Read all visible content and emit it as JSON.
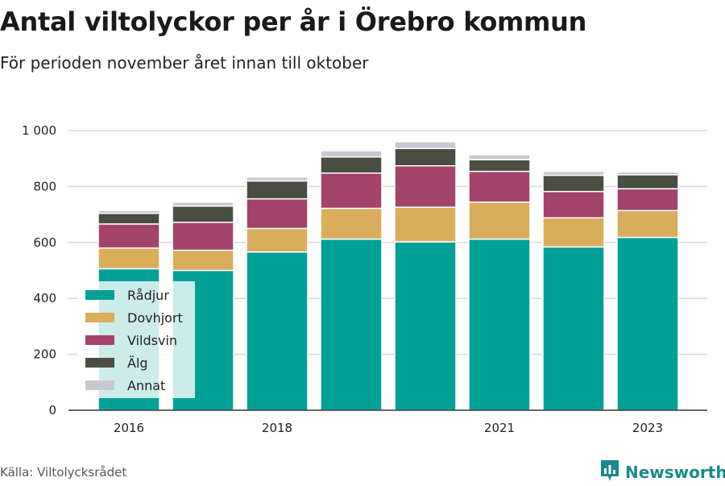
{
  "title": "Antal viltolyckor per år i Örebro kommun",
  "subtitle": "För perioden november året innan till oktober",
  "source": "Källa: Viltolycksrådet",
  "brand": {
    "name": "Newsworthy",
    "icon": "bar-chart-icon",
    "color": "#1a8a8a"
  },
  "chart_data": {
    "type": "bar",
    "stacked": true,
    "categories": [
      "2016",
      "2017",
      "2018",
      "2019",
      "2020",
      "2021",
      "2022",
      "2023"
    ],
    "x_tick_labels": [
      "2016",
      "",
      "2018",
      "",
      "",
      "2021",
      "",
      "2023"
    ],
    "ylim": [
      0,
      1000
    ],
    "yticks": [
      0,
      200,
      400,
      600,
      800,
      1000
    ],
    "ytick_labels": [
      "0",
      "200",
      "400",
      "600",
      "800",
      "1 000"
    ],
    "grid": true,
    "legend_position": "bottom-left",
    "series": [
      {
        "name": "Rådjur",
        "color": "#00a096",
        "values": [
          506,
          500,
          566,
          612,
          602,
          612,
          584,
          618
        ]
      },
      {
        "name": "Dovhjort",
        "color": "#d9ad5b",
        "values": [
          74,
          72,
          84,
          110,
          124,
          132,
          104,
          96
        ]
      },
      {
        "name": "Vildsvin",
        "color": "#a3436a",
        "values": [
          86,
          100,
          106,
          126,
          148,
          110,
          94,
          78
        ]
      },
      {
        "name": "Älg",
        "color": "#4a4e42",
        "values": [
          38,
          58,
          64,
          58,
          62,
          42,
          58,
          50
        ]
      },
      {
        "name": "Annat",
        "color": "#c8c8d2",
        "values": [
          10,
          14,
          14,
          22,
          24,
          18,
          14,
          10
        ]
      }
    ]
  }
}
